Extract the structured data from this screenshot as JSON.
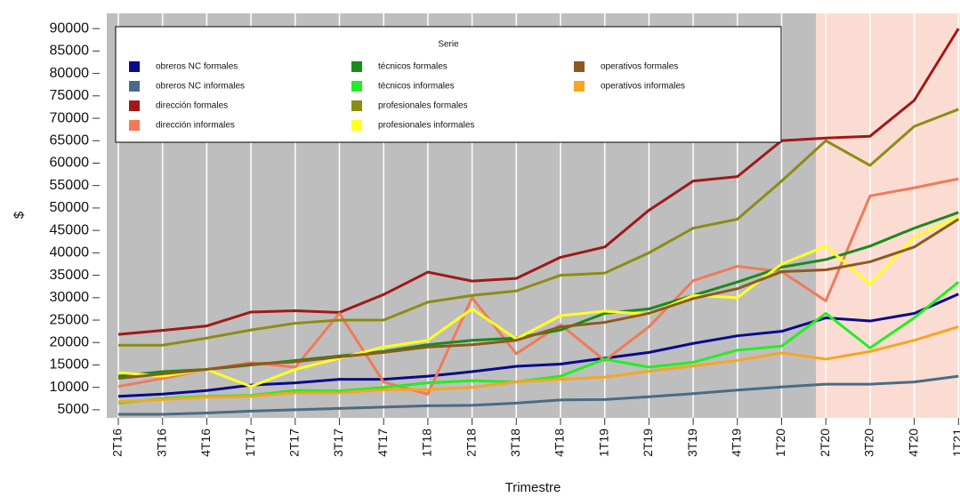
{
  "chart_data": {
    "type": "line",
    "legend_title": "Serie",
    "y_label": "$",
    "x_label": "Trimestre",
    "categories": [
      "2T16",
      "3T16",
      "4T16",
      "1T17",
      "2T17",
      "3T17",
      "4T17",
      "1T18",
      "2T18",
      "3T18",
      "4T18",
      "1T19",
      "2T19",
      "3T19",
      "4T19",
      "1T20",
      "2T20",
      "3T20",
      "4T20",
      "1T21"
    ],
    "ylim": [
      3200,
      93400
    ],
    "yticks": [
      5000,
      10000,
      15000,
      20000,
      25000,
      30000,
      35000,
      40000,
      45000,
      50000,
      55000,
      60000,
      65000,
      70000,
      75000,
      80000,
      85000,
      90000
    ],
    "grid": true,
    "series": [
      {
        "name": "obreros NC formales",
        "color": "#0a0a8c",
        "values": [
          8000,
          8500,
          9300,
          10500,
          11000,
          11800,
          11800,
          12500,
          13500,
          14700,
          15200,
          16500,
          17800,
          19800,
          21500,
          22500,
          25500,
          24800,
          26500,
          30800
        ]
      },
      {
        "name": "obreros NC informales",
        "color": "#4a6b85",
        "values": [
          4000,
          4000,
          4300,
          4700,
          5000,
          5300,
          5600,
          5900,
          6000,
          6500,
          7200,
          7300,
          7900,
          8600,
          9400,
          10100,
          10700,
          10700,
          11200,
          12500
        ]
      },
      {
        "name": "dirección formales",
        "color": "#a01818",
        "values": [
          21800,
          22700,
          23700,
          26800,
          27100,
          26700,
          30700,
          35700,
          33700,
          34300,
          39000,
          41300,
          49500,
          56000,
          57000,
          65000,
          65600,
          66000,
          74000,
          90000
        ]
      },
      {
        "name": "dirección informales",
        "color": "#f07a5a",
        "values": [
          10200,
          12000,
          14000,
          15500,
          14500,
          26500,
          11200,
          8500,
          30000,
          17500,
          24000,
          16000,
          23500,
          33800,
          37000,
          35800,
          29300,
          52700,
          54500,
          56500
        ]
      },
      {
        "name": "técnicos formales",
        "color": "#1a8a1a",
        "values": [
          12500,
          13500,
          14000,
          15000,
          16000,
          17000,
          18000,
          19500,
          20500,
          21000,
          22800,
          26500,
          27500,
          30500,
          33500,
          36800,
          38500,
          41500,
          45500,
          49000
        ]
      },
      {
        "name": "técnicos informales",
        "color": "#22ee22",
        "values": [
          6500,
          7500,
          8000,
          8200,
          9300,
          9200,
          10000,
          11000,
          11500,
          11200,
          12500,
          16300,
          14500,
          15600,
          18300,
          19200,
          26500,
          18800,
          25500,
          33500
        ]
      },
      {
        "name": "profesionales formales",
        "color": "#8c8c14",
        "values": [
          19400,
          19400,
          21000,
          22800,
          24300,
          25000,
          25000,
          29000,
          30500,
          31500,
          35000,
          35500,
          40000,
          45500,
          47500,
          56000,
          65000,
          59500,
          68200,
          72000
        ]
      },
      {
        "name": "profesionales informales",
        "color": "#ffff22",
        "values": [
          13300,
          12500,
          14000,
          10200,
          14000,
          16500,
          19000,
          20500,
          27500,
          20800,
          26000,
          27000,
          26300,
          30500,
          30000,
          37500,
          41500,
          33000,
          43500,
          48000
        ]
      },
      {
        "name": "operativos formales",
        "color": "#8c5a1e",
        "values": [
          12000,
          13000,
          14000,
          15200,
          15700,
          16800,
          17800,
          19000,
          19500,
          20500,
          23500,
          24500,
          26500,
          29800,
          32000,
          35800,
          36200,
          38000,
          41300,
          47500
        ]
      },
      {
        "name": "operativos informales",
        "color": "#f5a623",
        "values": [
          6800,
          7300,
          7800,
          8000,
          8800,
          8800,
          9500,
          9500,
          10000,
          11200,
          11800,
          12300,
          13600,
          14800,
          16000,
          17700,
          16300,
          18000,
          20500,
          23500
        ]
      }
    ]
  }
}
